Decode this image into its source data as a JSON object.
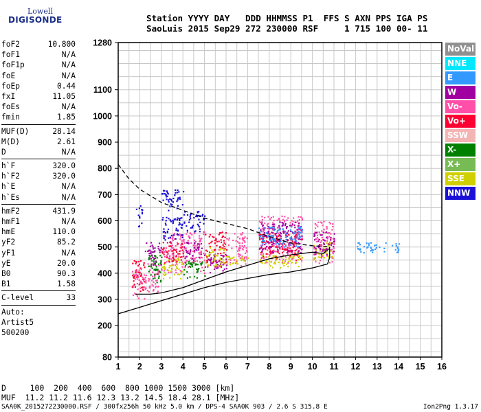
{
  "logo": {
    "line1": "Lowell",
    "line2": "DIGISONDE"
  },
  "header": {
    "line1": "Station YYYY DAY   DDD HHMMSS P1  FFS S AXN PPS IGA PS",
    "line2": "SaoLuis 2015 Sep29 272 230000 RSF     1 715 100 00- 11"
  },
  "params": [
    [
      {
        "label": "foF2",
        "value": "10.800"
      },
      {
        "label": "foF1",
        "value": "N/A"
      },
      {
        "label": "foF1p",
        "value": "N/A"
      },
      {
        "label": "foE",
        "value": "N/A"
      },
      {
        "label": "foEp",
        "value": "0.44"
      },
      {
        "label": "fxI",
        "value": "11.05"
      },
      {
        "label": "foEs",
        "value": "N/A"
      },
      {
        "label": "fmin",
        "value": "1.85"
      }
    ],
    [
      {
        "label": "MUF(D)",
        "value": "28.14"
      },
      {
        "label": "M(D)",
        "value": "2.61"
      },
      {
        "label": "D",
        "value": "N/A"
      }
    ],
    [
      {
        "label": "h`F",
        "value": "320.0"
      },
      {
        "label": "h`F2",
        "value": "320.0"
      },
      {
        "label": "h`E",
        "value": "N/A"
      },
      {
        "label": "h`Es",
        "value": "N/A"
      }
    ],
    [
      {
        "label": "hmF2",
        "value": "431.9"
      },
      {
        "label": "hmF1",
        "value": "N/A"
      },
      {
        "label": "hmE",
        "value": "110.0"
      },
      {
        "label": "yF2",
        "value": "85.2"
      },
      {
        "label": "yF1",
        "value": "N/A"
      },
      {
        "label": "yE",
        "value": "20.0"
      },
      {
        "label": "B0",
        "value": "90.3"
      },
      {
        "label": "B1",
        "value": "1.58"
      }
    ],
    [
      {
        "label": "C-level",
        "value": "33"
      }
    ],
    [
      {
        "label": "Auto:",
        "value": ""
      },
      {
        "label": "Artist5",
        "value": ""
      },
      {
        "label": "500200",
        "value": ""
      }
    ]
  ],
  "legend": [
    {
      "label": "NoVal",
      "color": "#909090"
    },
    {
      "label": "NNE",
      "color": "#00e8ff"
    },
    {
      "label": "E",
      "color": "#3399ff"
    },
    {
      "label": "W",
      "color": "#a000a0"
    },
    {
      "label": "Vo-",
      "color": "#ff4fa8"
    },
    {
      "label": "Vo+",
      "color": "#ff0033"
    },
    {
      "label": "SSW",
      "color": "#f4b4b4"
    },
    {
      "label": "X-",
      "color": "#008000"
    },
    {
      "label": "X+",
      "color": "#77bb55"
    },
    {
      "label": "SSE",
      "color": "#d0d000"
    },
    {
      "label": "NNW",
      "color": "#1a10d8"
    }
  ],
  "bottom": {
    "line1": "D     100  200  400  600  800 1000 1500 3000 [km]",
    "line2": "MUF  11.2 11.2 11.6 12.3 13.2 14.5 18.4 28.1 [MHz]"
  },
  "footer": {
    "left": "SAA0K_2015272230000.RSF / 300fx256h 50 kHz 5.0 km / DPS-4 SAA0K 903 / 2.6 S 315.8 E",
    "right": "Ion2Png 1.3.17"
  },
  "chart_data": {
    "type": "scatter",
    "xlim": [
      1,
      16
    ],
    "ylim": [
      80,
      1280
    ],
    "xticks": [
      1,
      2,
      3,
      4,
      5,
      6,
      7,
      8,
      9,
      10,
      11,
      12,
      13,
      14,
      15,
      16
    ],
    "yticks": [
      80,
      200,
      300,
      400,
      500,
      600,
      700,
      800,
      900,
      1000,
      1100,
      1280
    ],
    "grid": true,
    "legend_position": "right",
    "clusters": [
      {
        "x": [
          1.6,
          2.2
        ],
        "y": [
          300,
          420
        ],
        "color": "#ff4fa8"
      },
      {
        "x": [
          1.6,
          2.2
        ],
        "y": [
          330,
          450
        ],
        "color": "#ff0033"
      },
      {
        "x": [
          1.8,
          2.1
        ],
        "y": [
          580,
          660
        ],
        "color": "#1a10d8"
      },
      {
        "x": [
          2.2,
          3.0
        ],
        "y": [
          320,
          440
        ],
        "color": "#ff4fa8"
      },
      {
        "x": [
          2.2,
          3.0
        ],
        "y": [
          430,
          520
        ],
        "color": "#a000a0"
      },
      {
        "x": [
          2.3,
          3.0
        ],
        "y": [
          360,
          470
        ],
        "color": "#008000"
      },
      {
        "x": [
          3.0,
          4.0
        ],
        "y": [
          400,
          560
        ],
        "color": "#ff4fa8"
      },
      {
        "x": [
          3.0,
          4.0
        ],
        "y": [
          520,
          620
        ],
        "color": "#1a10d8"
      },
      {
        "x": [
          3.0,
          4.0
        ],
        "y": [
          640,
          720
        ],
        "color": "#1a10d8"
      },
      {
        "x": [
          3.0,
          4.0
        ],
        "y": [
          380,
          460
        ],
        "color": "#d0d000"
      },
      {
        "x": [
          3.0,
          4.0
        ],
        "y": [
          440,
          520
        ],
        "color": "#ff0033"
      },
      {
        "x": [
          4.0,
          5.0
        ],
        "y": [
          400,
          560
        ],
        "color": "#ff4fa8"
      },
      {
        "x": [
          4.0,
          5.0
        ],
        "y": [
          560,
          640
        ],
        "color": "#1a10d8"
      },
      {
        "x": [
          4.0,
          5.0
        ],
        "y": [
          380,
          450
        ],
        "color": "#008000"
      },
      {
        "x": [
          4.0,
          5.0
        ],
        "y": [
          450,
          520
        ],
        "color": "#a000a0"
      },
      {
        "x": [
          5.0,
          6.0
        ],
        "y": [
          420,
          560
        ],
        "color": "#ff0033"
      },
      {
        "x": [
          5.0,
          6.0
        ],
        "y": [
          400,
          480
        ],
        "color": "#a000a0"
      },
      {
        "x": [
          5.0,
          6.0
        ],
        "y": [
          430,
          500
        ],
        "color": "#d0d000"
      },
      {
        "x": [
          6.0,
          7.0
        ],
        "y": [
          430,
          560
        ],
        "color": "#ff4fa8"
      },
      {
        "x": [
          6.0,
          7.0
        ],
        "y": [
          430,
          470
        ],
        "color": "#d0d000"
      },
      {
        "x": [
          7.5,
          9.5
        ],
        "y": [
          430,
          620
        ],
        "color": "#ff4fa8"
      },
      {
        "x": [
          7.5,
          9.5
        ],
        "y": [
          450,
          560
        ],
        "color": "#ff0033"
      },
      {
        "x": [
          7.5,
          9.5
        ],
        "y": [
          420,
          470
        ],
        "color": "#d0d000"
      },
      {
        "x": [
          7.5,
          9.5
        ],
        "y": [
          480,
          600
        ],
        "color": "#a000a0"
      },
      {
        "x": [
          7.5,
          9.5
        ],
        "y": [
          500,
          580
        ],
        "color": "#3399ff"
      },
      {
        "x": [
          10.0,
          11.0
        ],
        "y": [
          440,
          600
        ],
        "color": "#ff4fa8"
      },
      {
        "x": [
          10.0,
          11.0
        ],
        "y": [
          450,
          520
        ],
        "color": "#d0d000"
      },
      {
        "x": [
          10.0,
          11.0
        ],
        "y": [
          470,
          560
        ],
        "color": "#a000a0"
      },
      {
        "x": [
          12.0,
          14.0
        ],
        "y": [
          480,
          520
        ],
        "color": "#3399ff"
      }
    ],
    "curves": [
      {
        "style": "dashed",
        "points": [
          [
            1.0,
            815
          ],
          [
            1.5,
            760
          ],
          [
            2.0,
            720
          ],
          [
            3.0,
            670
          ],
          [
            4.0,
            640
          ],
          [
            5.0,
            610
          ],
          [
            6.0,
            590
          ],
          [
            7.0,
            570
          ],
          [
            8.0,
            540
          ],
          [
            9.0,
            515
          ],
          [
            10.0,
            505
          ],
          [
            10.8,
            500
          ]
        ]
      },
      {
        "style": "solid",
        "points": [
          [
            1.0,
            245
          ],
          [
            2.0,
            270
          ],
          [
            3.0,
            295
          ],
          [
            4.0,
            320
          ],
          [
            5.0,
            345
          ],
          [
            6.0,
            365
          ],
          [
            7.0,
            380
          ],
          [
            8.0,
            395
          ],
          [
            9.0,
            405
          ],
          [
            10.0,
            420
          ],
          [
            10.7,
            435
          ],
          [
            10.8,
            460
          ],
          [
            10.8,
            500
          ]
        ]
      },
      {
        "style": "solid",
        "points": [
          [
            1.8,
            320
          ],
          [
            2.5,
            320
          ],
          [
            3.0,
            325
          ],
          [
            4.0,
            345
          ],
          [
            5.0,
            375
          ],
          [
            6.0,
            405
          ],
          [
            7.0,
            430
          ],
          [
            8.0,
            455
          ],
          [
            9.0,
            470
          ],
          [
            10.0,
            480
          ],
          [
            10.5,
            475
          ],
          [
            10.8,
            495
          ]
        ]
      }
    ]
  }
}
